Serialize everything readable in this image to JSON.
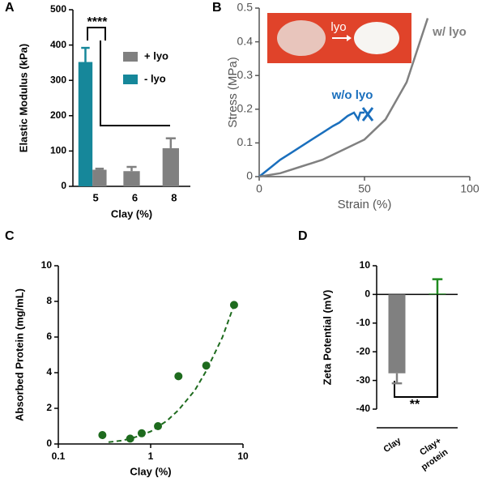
{
  "chart_data": [
    {
      "type": "bar",
      "panel": "A",
      "xlabel": "Clay (%)",
      "ylabel": "Elastic Modulus (kPa)",
      "categories": [
        "5",
        "6",
        "8"
      ],
      "series": [
        {
          "name": "+ lyo",
          "color": "#808080",
          "values": [
            47,
            43,
            108
          ],
          "errors": [
            3,
            12,
            28
          ]
        },
        {
          "name": "- lyo",
          "color": "#16879a",
          "values": [
            352,
            null,
            null
          ],
          "errors": [
            40,
            null,
            null
          ]
        }
      ],
      "ylim": [
        0,
        500
      ],
      "yticks": [
        0,
        100,
        200,
        300,
        400,
        500
      ],
      "annotations": [
        "****"
      ],
      "legend": "upper right"
    },
    {
      "type": "line",
      "panel": "B",
      "xlabel": "Strain (%)",
      "ylabel": "Stress (MPa)",
      "series": [
        {
          "name": "w/o lyo",
          "color": "#1a6fbd",
          "x": [
            0,
            5,
            10,
            15,
            20,
            25,
            30,
            35,
            38,
            42,
            45,
            47,
            48,
            50
          ],
          "values": [
            0,
            0.025,
            0.05,
            0.07,
            0.09,
            0.11,
            0.13,
            0.15,
            0.16,
            0.18,
            0.19,
            0.17,
            0.19,
            0.19
          ]
        },
        {
          "name": "w/ lyo",
          "color": "#808080",
          "x": [
            0,
            10,
            20,
            30,
            40,
            50,
            60,
            70,
            80
          ],
          "values": [
            0,
            0.01,
            0.03,
            0.05,
            0.08,
            0.11,
            0.17,
            0.28,
            0.47
          ]
        }
      ],
      "xlim": [
        0,
        100
      ],
      "xticks": [
        0,
        50,
        100
      ],
      "ylim": [
        0,
        0.5
      ],
      "yticks": [
        0,
        0.1,
        0.2,
        0.3,
        0.4,
        0.5
      ],
      "inset_label": "lyo"
    },
    {
      "type": "scatter",
      "panel": "C",
      "xlabel": "Clay (%)",
      "ylabel": "Absorbed Protein (mg/mL)",
      "xscale": "log",
      "x": [
        0.3,
        0.6,
        0.8,
        1.2,
        2,
        4,
        8
      ],
      "values": [
        0.5,
        0.3,
        0.6,
        1.0,
        3.8,
        4.4,
        7.8
      ],
      "color": "#1e6b1e",
      "fit": {
        "x": [
          0.35,
          0.5,
          0.7,
          1,
          1.5,
          2,
          3,
          4,
          6,
          8
        ],
        "values": [
          0.1,
          0.2,
          0.4,
          0.7,
          1.3,
          1.9,
          3.0,
          4.1,
          6.0,
          7.8
        ]
      },
      "xlim": [
        0.1,
        10
      ],
      "xticks": [
        0.1,
        1,
        10
      ],
      "ylim": [
        0,
        10
      ],
      "yticks": [
        0,
        2,
        4,
        6,
        8,
        10
      ]
    },
    {
      "type": "bar",
      "panel": "D",
      "ylabel": "Zeta Potential (mV)",
      "categories": [
        "Clay",
        [
          "Clay+",
          "protein"
        ]
      ],
      "series": [
        {
          "values": [
            -27.5,
            0.3
          ],
          "errors": [
            3.5,
            5
          ],
          "colors": [
            "#808080",
            "#1e8a1e"
          ]
        }
      ],
      "ylim": [
        -40,
        10
      ],
      "yticks": [
        10,
        0,
        -10,
        -20,
        -30,
        -40
      ],
      "annotations": [
        "**"
      ]
    }
  ]
}
